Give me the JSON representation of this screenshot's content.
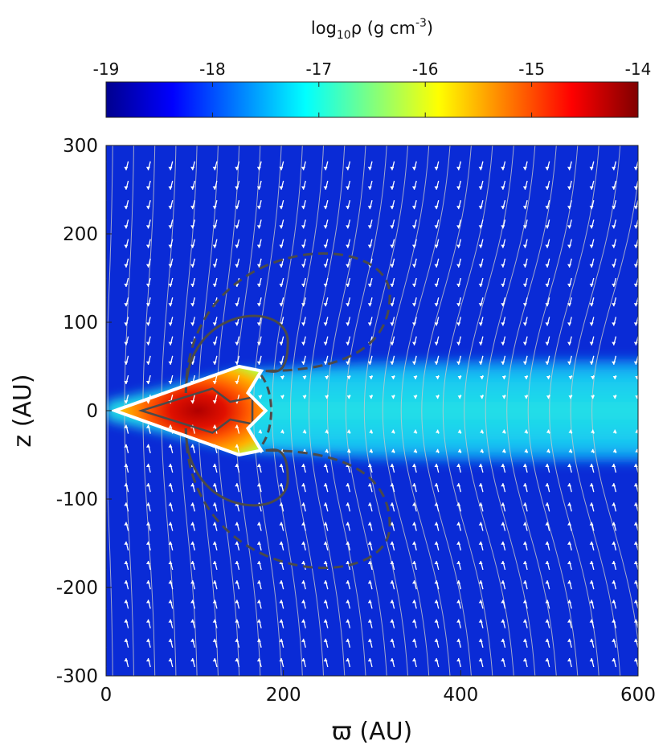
{
  "chart_data": {
    "type": "heatmap",
    "colorbar": {
      "label": {
        "main": "log",
        "sub": "10",
        "rho": "ρ",
        "unit": " (g cm",
        "sup": "-3",
        "close": ")"
      },
      "range": [
        -19,
        -14
      ],
      "ticks": [
        "-19",
        "-18",
        "-17",
        "-16",
        "-15",
        "-14"
      ],
      "colormap": "jet"
    },
    "xlabel": "ϖ (AU)",
    "ylabel": "z (AU)",
    "xlim": [
      0,
      600
    ],
    "ylim": [
      -300,
      300
    ],
    "x_ticks": [
      "0",
      "200",
      "400",
      "600"
    ],
    "y_ticks": [
      "300",
      "200",
      "100",
      "0",
      "-100",
      "-200",
      "-300"
    ],
    "background_log_density": -18.4,
    "components": [
      {
        "name": "flattened envelope",
        "log_density": -16.9,
        "half_thickness_at_x": [
          [
            0,
            10
          ],
          [
            150,
            45
          ],
          [
            300,
            55
          ],
          [
            450,
            58
          ],
          [
            600,
            58
          ]
        ]
      },
      {
        "name": "disk",
        "contour": "white",
        "outline": [
          [
            10,
            0
          ],
          [
            150,
            50
          ],
          [
            175,
            45
          ],
          [
            160,
            20
          ],
          [
            180,
            0
          ],
          [
            160,
            -20
          ],
          [
            175,
            -45
          ],
          [
            150,
            -50
          ]
        ],
        "peak_log_density": -14.2
      }
    ],
    "overlays": {
      "magnetic_field_lines": {
        "color": "#c8c8c8"
      },
      "velocity_arrows": {
        "color": "#ffffff"
      },
      "contours": [
        {
          "style": "dashed",
          "color": "#4a4a4a",
          "max_z": 200,
          "max_x": 320
        },
        {
          "style": "solid",
          "color": "#4a4a4a",
          "max_z": 120,
          "max_x": 205
        }
      ]
    }
  }
}
